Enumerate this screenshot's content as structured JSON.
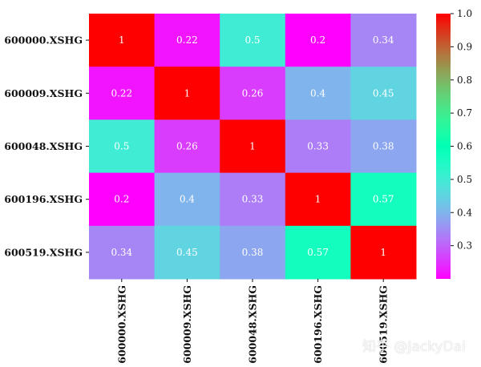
{
  "chart_data": {
    "type": "heatmap",
    "rows": [
      "600000.XSHG",
      "600009.XSHG",
      "600048.XSHG",
      "600196.XSHG",
      "600519.XSHG"
    ],
    "columns": [
      "600000.XSHG",
      "600009.XSHG",
      "600048.XSHG",
      "600196.XSHG",
      "600519.XSHG"
    ],
    "values": [
      [
        1,
        0.22,
        0.5,
        0.2,
        0.34
      ],
      [
        0.22,
        1,
        0.26,
        0.4,
        0.45
      ],
      [
        0.5,
        0.26,
        1,
        0.33,
        0.38
      ],
      [
        0.2,
        0.4,
        0.33,
        1,
        0.57
      ],
      [
        0.34,
        0.45,
        0.38,
        0.57,
        1
      ]
    ],
    "value_labels": [
      [
        "1",
        "0.22",
        "0.5",
        "0.2",
        "0.34"
      ],
      [
        "0.22",
        "1",
        "0.26",
        "0.4",
        "0.45"
      ],
      [
        "0.5",
        "0.26",
        "1",
        "0.33",
        "0.38"
      ],
      [
        "0.2",
        "0.4",
        "0.33",
        "1",
        "0.57"
      ],
      [
        "0.34",
        "0.45",
        "0.38",
        "0.57",
        "1"
      ]
    ],
    "colormap": "rainbow",
    "vmin": 0.2,
    "vmax": 1.0,
    "colorbar_ticks": [
      "1.0",
      "0.9",
      "0.8",
      "0.7",
      "0.6",
      "0.5",
      "0.4",
      "0.3"
    ],
    "colorbar_tick_values": [
      1.0,
      0.9,
      0.8,
      0.7,
      0.6,
      0.5,
      0.4,
      0.3
    ],
    "title": "",
    "xlabel": "",
    "ylabel": ""
  },
  "watermark": "知乎 @JackyDai"
}
